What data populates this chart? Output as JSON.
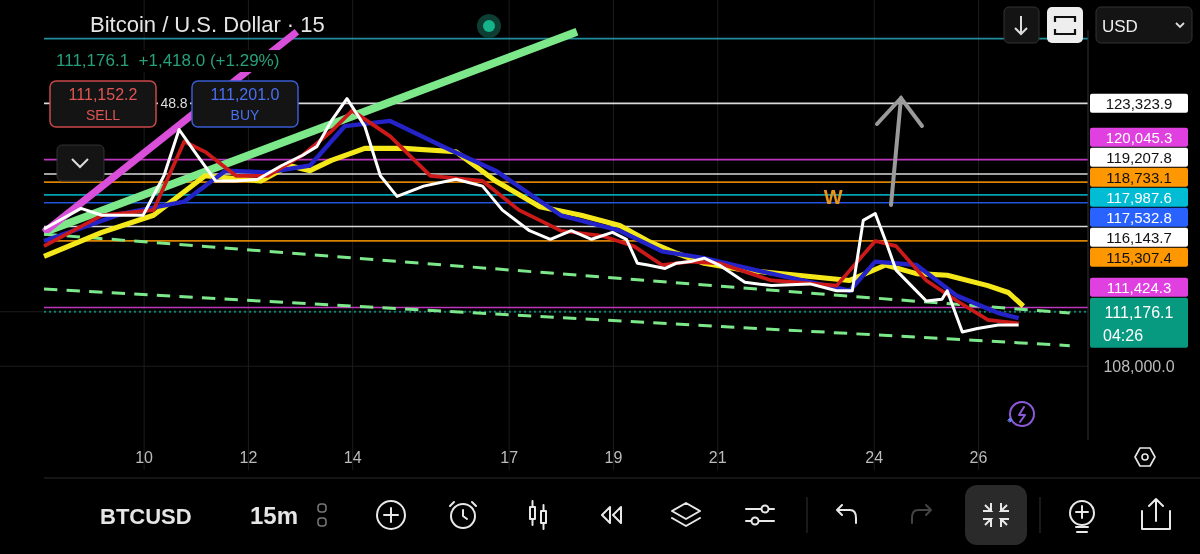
{
  "chart_data": {
    "type": "line",
    "title": "Bitcoin / U.S. Dollar · 15",
    "xlim": [
      8.08,
      28.1
    ],
    "ylim": [
      103700,
      127600
    ],
    "xticks": [
      10,
      12,
      14,
      17,
      19,
      21,
      24,
      26
    ],
    "yticks": [
      {
        "value": 108000,
        "label": "108,000.0"
      },
      {
        "value": 111176.1,
        "label": "111,176.1"
      }
    ],
    "grid": true,
    "series": [
      {
        "color": "#7de88a",
        "x": [
          8.08,
          18.3
        ],
        "values": [
          115800,
          127500
        ]
      },
      {
        "color": "#d94fd9",
        "x": [
          8.08,
          12.93
        ],
        "values": [
          115800,
          127500
        ]
      },
      {
        "color": "#7de88a",
        "line_style": "dashed",
        "x": [
          8.08,
          27.75
        ],
        "values": [
          115700,
          111100
        ]
      },
      {
        "color": "#7de88a",
        "line_style": "dashed",
        "x": [
          8.08,
          27.75
        ],
        "values": [
          112500,
          109200
        ]
      },
      {
        "color": "#f5e81a",
        "x": [
          8.08,
          9.19,
          10.18,
          11.17,
          12.24,
          12.78,
          13.18,
          13.59,
          14.23,
          14.98,
          15.98,
          16.74,
          17.59,
          18.38,
          19.12,
          19.66,
          20.2,
          20.74,
          21.52,
          22.53,
          23.53,
          24.22,
          24.81,
          25.4,
          26.18,
          26.57,
          26.86
        ],
        "values": [
          114400,
          115800,
          116800,
          119100,
          118800,
          119700,
          119400,
          120000,
          120700,
          120700,
          120500,
          118800,
          117300,
          116800,
          116200,
          115300,
          114600,
          114000,
          113600,
          113300,
          113000,
          113900,
          113400,
          113300,
          112700,
          112300,
          111500
        ]
      },
      {
        "color": "#2323c8",
        "x": [
          8.08,
          9.58,
          10.77,
          11.56,
          12.37,
          13.18,
          13.85,
          14.72,
          15.74,
          16.74,
          17.99,
          19.12,
          19.93,
          20.74,
          22.03,
          23.53,
          24.02,
          24.81,
          25.59,
          26.38,
          26.77
        ],
        "values": [
          115300,
          116900,
          117600,
          119400,
          119300,
          119700,
          122000,
          122300,
          120800,
          119400,
          116800,
          115900,
          114700,
          114300,
          113400,
          112400,
          114100,
          113900,
          112100,
          111100,
          110800
        ]
      },
      {
        "color": "#cc1a1a",
        "x": [
          8.08,
          9.19,
          10.18,
          10.77,
          11.17,
          11.76,
          12.37,
          13.04,
          13.59,
          13.99,
          14.72,
          15.49,
          16.49,
          17.19,
          17.99,
          18.78,
          19.39,
          19.93,
          20.48,
          21.03,
          22.03,
          23.28,
          24.02,
          24.42,
          25.0,
          25.59,
          26.18,
          26.77
        ],
        "values": [
          115000,
          116800,
          117100,
          121100,
          120500,
          119100,
          119100,
          120300,
          121700,
          122900,
          121400,
          119100,
          118800,
          117100,
          115900,
          115600,
          115000,
          113900,
          114100,
          114000,
          113000,
          112700,
          115300,
          115000,
          113000,
          111800,
          110700,
          110500
        ]
      },
      {
        "color": "#ffffff",
        "x": [
          8.08,
          8.79,
          9.19,
          9.98,
          10.38,
          10.67,
          10.97,
          11.37,
          11.76,
          12.18,
          12.64,
          13.04,
          13.31,
          13.59,
          13.89,
          14.23,
          14.53,
          14.85,
          15.36,
          15.98,
          16.49,
          16.87,
          17.39,
          17.79,
          18.19,
          18.58,
          18.98,
          19.25,
          19.46,
          19.66,
          19.99,
          20.2,
          20.48,
          20.74,
          21.03,
          21.52,
          22.03,
          22.77,
          23.28,
          23.58,
          23.79,
          24.02,
          24.22,
          24.42,
          24.71,
          25.0,
          25.3,
          25.4,
          25.69,
          25.98,
          26.38,
          26.77
        ],
        "values": [
          116000,
          117200,
          116800,
          116800,
          119100,
          121800,
          120500,
          118800,
          118800,
          118900,
          119700,
          120300,
          120800,
          122300,
          123600,
          122000,
          119100,
          117900,
          118500,
          118900,
          118500,
          117100,
          115900,
          115400,
          115900,
          115400,
          115800,
          115400,
          114000,
          113900,
          113700,
          114000,
          114100,
          114300,
          113900,
          112900,
          112700,
          112800,
          112400,
          112400,
          116500,
          116900,
          115300,
          113600,
          112700,
          111800,
          111900,
          112400,
          110000,
          110200,
          110400,
          110400
        ]
      }
    ],
    "ref_lines": [
      {
        "axis": "y",
        "value": 127100,
        "color": "#26a6b8"
      },
      {
        "axis": "y",
        "value": 123323.9,
        "label": "123,323.9",
        "color": "#ffffff"
      },
      {
        "axis": "y",
        "value": 120045.3,
        "label": "120,045.3",
        "color": "#e040e0"
      },
      {
        "axis": "y",
        "value": 119207.8,
        "label": "119,207.8",
        "color": "#ffffff"
      },
      {
        "axis": "y",
        "value": 118733.1,
        "label": "118,733.1",
        "color": "#ff9800"
      },
      {
        "axis": "y",
        "value": 117987.6,
        "label": "117,987.6",
        "color": "#00bcd4"
      },
      {
        "axis": "y",
        "value": 117532.8,
        "label": "117,532.8",
        "color": "#2962ff"
      },
      {
        "axis": "y",
        "value": 116143.7,
        "label": "116,143.7",
        "color": "#ffffff"
      },
      {
        "axis": "y",
        "value": 115307.4,
        "label": "115,307.4",
        "color": "#ff9800"
      },
      {
        "axis": "y",
        "value": 111424.3,
        "label": "111,424.3",
        "color": "#e040e0"
      },
      {
        "axis": "y",
        "value": 111176.1,
        "color": "#089981",
        "line_style": "dotted"
      }
    ],
    "annotations": [
      "111,176.1  +1,418.0 (+1.29%)",
      "111,152.2",
      "SELL",
      "48.8",
      "111,201.0",
      "BUY",
      "04:26",
      "USD",
      "BTCUSD",
      "15m",
      {
        "text": "W",
        "x": 23.79,
        "y": 116900
      }
    ]
  }
}
